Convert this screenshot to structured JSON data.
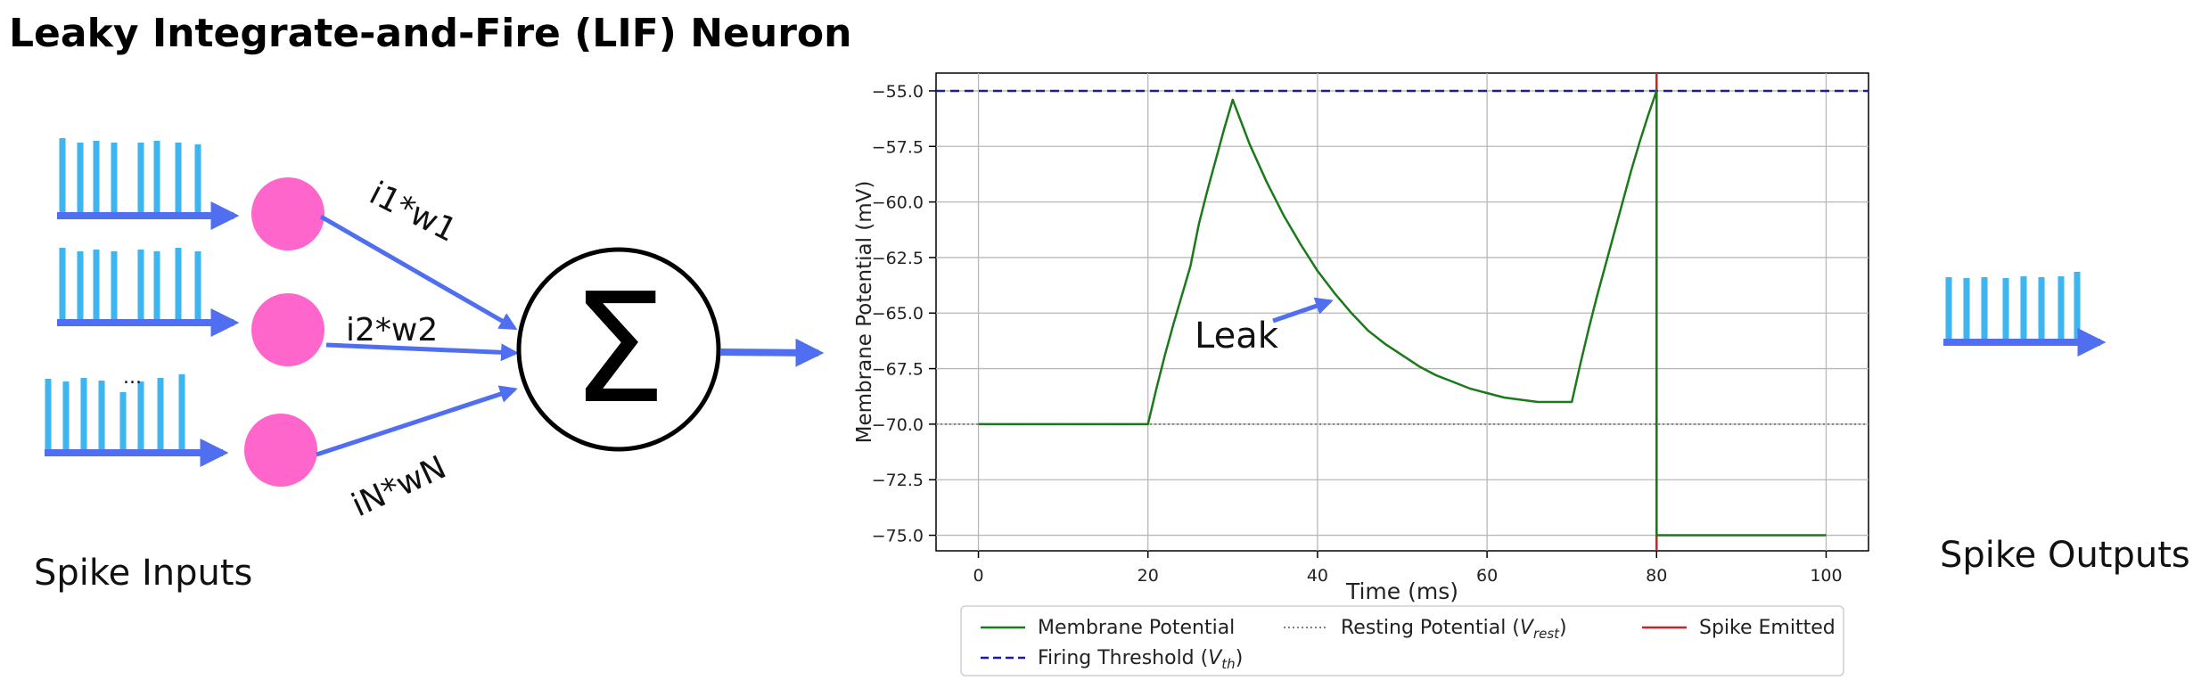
{
  "title": "Leaky Integrate-and-Fire (LIF) Neuron",
  "inputs": {
    "caption": "Spike Inputs",
    "weights": [
      "i1*w1",
      "i2*w2",
      "iN*wN"
    ],
    "ellipsis": "...",
    "summation_symbol": "Σ"
  },
  "outputs": {
    "caption": "Spike Outputs"
  },
  "colors": {
    "spike": "#3db5f0",
    "arrow": "#4f6ff0",
    "node": "#ff66cc",
    "membrane": "#1a7a1a",
    "threshold": "#1a1aaa",
    "resting": "#808080",
    "spike_line": "#cc2222"
  },
  "chart_data": {
    "type": "line",
    "xlabel": "Time (ms)",
    "ylabel": "Membrane Potential (mV)",
    "xlim": [
      -5,
      105
    ],
    "ylim": [
      -75.7,
      -54.2
    ],
    "xticks": [
      0,
      20,
      40,
      60,
      80,
      100
    ],
    "yticks": [
      -55.0,
      -57.5,
      -60.0,
      -62.5,
      -65.0,
      -67.5,
      -70.0,
      -72.5,
      -75.0
    ],
    "ytick_labels": [
      "−55.0",
      "−57.5",
      "−60.0",
      "−62.5",
      "−65.0",
      "−67.5",
      "−70.0",
      "−72.5",
      "−75.0"
    ],
    "grid": true,
    "series": [
      {
        "name": "Membrane Potential",
        "style": "solid",
        "x": [
          0,
          20,
          21,
          22,
          23,
          24,
          25,
          26,
          27,
          28,
          29,
          30,
          32,
          34,
          36,
          38,
          40,
          42,
          44,
          46,
          48,
          50,
          52,
          54,
          56,
          58,
          60,
          62,
          64,
          66,
          68,
          70,
          71,
          72,
          73,
          74,
          75,
          76,
          77,
          78,
          79,
          80,
          80,
          100
        ],
        "y": [
          -70,
          -70,
          -68.4,
          -66.9,
          -65.5,
          -64.2,
          -62.9,
          -61.0,
          -59.5,
          -58.1,
          -56.7,
          -55.4,
          -57.4,
          -59.1,
          -60.6,
          -61.9,
          -63.1,
          -64.1,
          -65.0,
          -65.8,
          -66.4,
          -66.9,
          -67.4,
          -67.8,
          -68.1,
          -68.4,
          -68.6,
          -68.8,
          -68.9,
          -69.0,
          -69.0,
          -69.0,
          -67.3,
          -65.7,
          -64.2,
          -62.8,
          -61.4,
          -60.0,
          -58.6,
          -57.3,
          -56.1,
          -55.0,
          -75.0,
          -75.0
        ]
      }
    ],
    "hlines": [
      {
        "name": "Firing Threshold (V_th)",
        "y": -55.0,
        "style": "dashed"
      },
      {
        "name": "Resting Potential (V_rest)",
        "y": -70.0,
        "style": "dotted"
      }
    ],
    "vlines": [
      {
        "name": "Spike Emitted",
        "x": 80,
        "style": "solid"
      }
    ],
    "annotation": {
      "text": "Leak"
    },
    "legend": {
      "placement": "bottom",
      "entries": [
        {
          "label": "Membrane Potential",
          "style": "solid",
          "color_key": "membrane"
        },
        {
          "label": "Resting Potential (",
          "sym": "V",
          "sub": "rest",
          "label_end": ")",
          "style": "dotted",
          "color_key": "resting"
        },
        {
          "label": "Spike Emitted",
          "style": "solid",
          "color_key": "spike_line"
        },
        {
          "label": "Firing Threshold (",
          "sym": "V",
          "sub": "th",
          "label_end": ")",
          "style": "dashed",
          "color_key": "threshold"
        }
      ]
    }
  }
}
